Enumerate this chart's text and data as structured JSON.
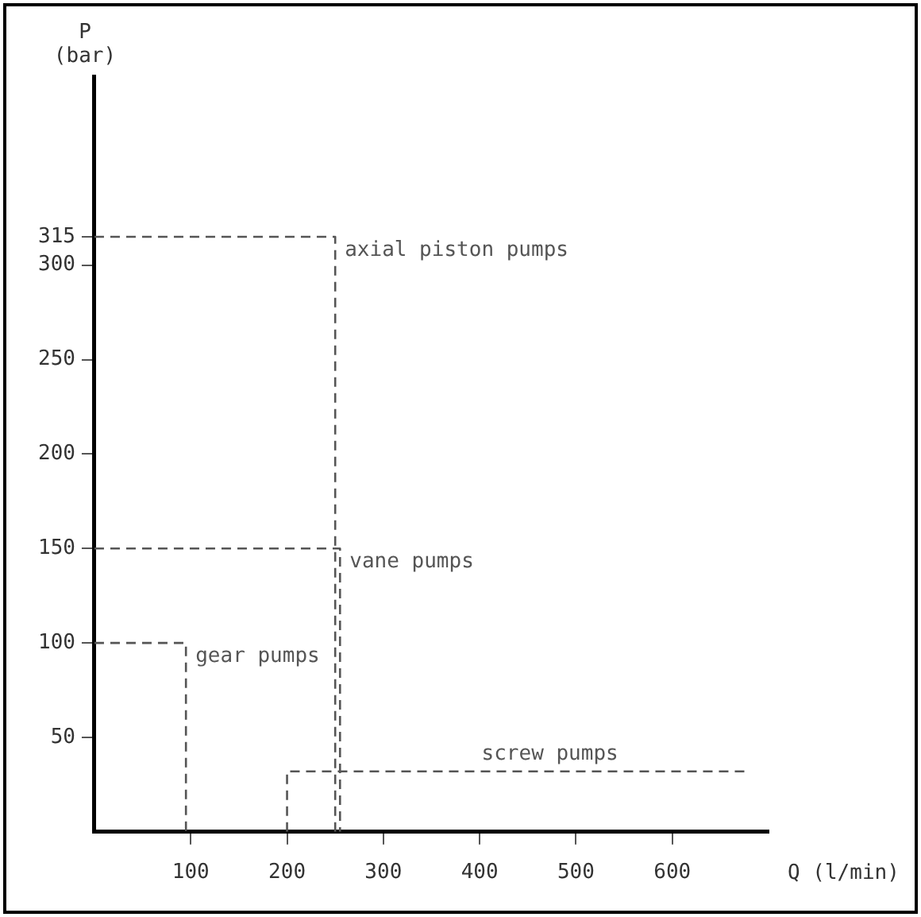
{
  "chart_data": {
    "type": "line",
    "xlabel": "Q (l/min)",
    "ylabel": "P (bar)",
    "xlim": [
      0,
      700
    ],
    "xticks": [
      100,
      200,
      300,
      400,
      500,
      600
    ],
    "ylim": [
      0,
      400
    ],
    "yticks": [
      50,
      100,
      150,
      200,
      250,
      300,
      315
    ],
    "series": [
      {
        "name": "gear pumps",
        "color": "#555555",
        "x": [
          0,
          95,
          95
        ],
        "values": [
          100,
          100,
          0
        ]
      },
      {
        "name": "vane pumps",
        "color": "#555555",
        "x": [
          0,
          255,
          255
        ],
        "values": [
          150,
          150,
          0
        ]
      },
      {
        "name": "axial piston pumps",
        "color": "#555555",
        "x": [
          0,
          250,
          250
        ],
        "values": [
          315,
          315,
          0
        ]
      },
      {
        "name": "screw pumps",
        "color": "#555555",
        "x": [
          200,
          200,
          680
        ],
        "values": [
          0,
          32,
          32
        ]
      }
    ],
    "line_style": "dashed",
    "marker": "none",
    "grid": false,
    "legend": false
  }
}
